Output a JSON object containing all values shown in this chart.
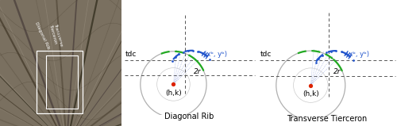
{
  "bg_color": "#ffffff",
  "photo_bg1": "#8a7e6e",
  "photo_bg2": "#6a6050",
  "circle_color": "#b0b0b0",
  "green_color": "#22aa22",
  "blue_color": "#2255cc",
  "blue_dot_color": "#8899dd",
  "red_color": "#dd2200",
  "dash_color": "#555555",
  "label1": "Diagonal Rib",
  "label2": "Transverse Tierceron",
  "tdc_label": "tdc",
  "r_label": "2r",
  "hk_label": "(h,k)",
  "xbyb_label": "(xᵇ, yᵇ)",
  "font_size": 6.5,
  "title_font_size": 7.0
}
